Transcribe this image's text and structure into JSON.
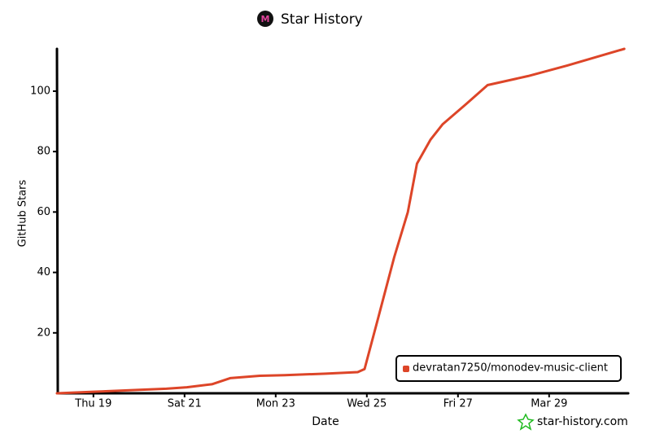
{
  "chart_data": {
    "type": "line",
    "title": "Star History",
    "x_label": "Date",
    "y_label": "GitHub Stars",
    "x": [
      18.2,
      19.0,
      19.8,
      20.6,
      21.05,
      21.6,
      22.0,
      22.65,
      23.2,
      24.1,
      24.8,
      24.95,
      25.25,
      25.6,
      25.9,
      26.1,
      26.4,
      26.66,
      27.2,
      27.65,
      28.54,
      29.4,
      30.65
    ],
    "series": [
      {
        "name": "devratan7250/monodev-music-client",
        "color": "#dd4528",
        "values": [
          0,
          0.5,
          1,
          1.5,
          2,
          3,
          5,
          5.8,
          6,
          6.5,
          7,
          8,
          25,
          45,
          60,
          76,
          84,
          89,
          96,
          102,
          105,
          108.5,
          114
        ]
      }
    ],
    "xlim": [
      18.2,
      30.7
    ],
    "ylim": [
      0,
      114
    ],
    "xticks": [
      {
        "value": 19,
        "label": "Thu 19"
      },
      {
        "value": 21,
        "label": "Sat 21"
      },
      {
        "value": 23,
        "label": "Mon 23"
      },
      {
        "value": 25,
        "label": "Wed 25"
      },
      {
        "value": 27,
        "label": "Fri 27"
      },
      {
        "value": 29,
        "label": "Mar 29"
      }
    ],
    "yticks": [
      20,
      40,
      60,
      80,
      100
    ],
    "legend": "lower right",
    "watermark": "star-history.com"
  }
}
